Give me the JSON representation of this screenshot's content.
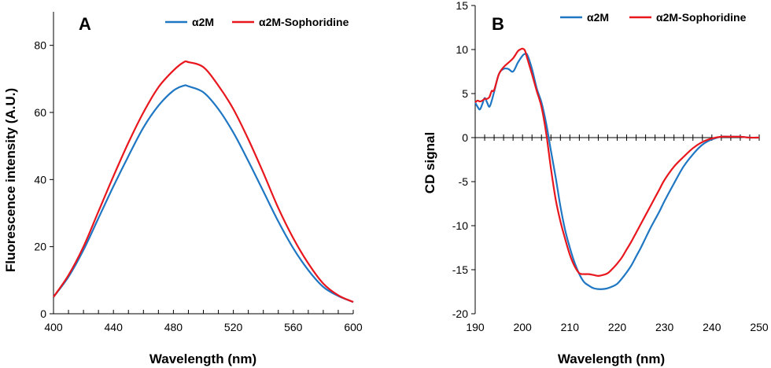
{
  "colors": {
    "series_1": "#1f77c4",
    "series_2": "#e8171d",
    "axis": "#000000"
  },
  "chart_data": [
    {
      "type": "line",
      "panel_label": "A",
      "xlabel": "Wavelength (nm)",
      "ylabel": "Fluorescence intensity (A.U.)",
      "xlim": [
        400,
        600
      ],
      "ylim": [
        0,
        90
      ],
      "x_ticks": [
        400,
        440,
        480,
        520,
        560,
        600
      ],
      "y_ticks": [
        0,
        20,
        40,
        60,
        80
      ],
      "x_minor_step": 10,
      "legend": [
        "α2M",
        "α2M-Sophoridine"
      ],
      "series": [
        {
          "name": "α2M",
          "x": [
            400,
            410,
            420,
            430,
            440,
            450,
            460,
            470,
            480,
            487,
            490,
            500,
            510,
            520,
            530,
            540,
            550,
            560,
            570,
            580,
            590,
            600
          ],
          "y": [
            5,
            11,
            19,
            28.5,
            38,
            47,
            55.5,
            62,
            66.5,
            68,
            67.8,
            66,
            61,
            54,
            45.5,
            36.5,
            27.5,
            19.5,
            13,
            8,
            5.3,
            3.5
          ]
        },
        {
          "name": "α2M-Sophoridine",
          "x": [
            400,
            410,
            420,
            430,
            440,
            450,
            460,
            470,
            480,
            487,
            490,
            500,
            510,
            520,
            530,
            540,
            550,
            560,
            570,
            580,
            590,
            600
          ],
          "y": [
            5,
            11.5,
            20,
            30.5,
            41,
            51,
            60,
            67.5,
            72.5,
            75,
            75,
            73.5,
            68,
            61,
            52,
            42,
            31.5,
            22.5,
            15,
            9,
            5.5,
            3.5
          ]
        }
      ]
    },
    {
      "type": "line",
      "panel_label": "B",
      "xlabel": "Wavelength (nm)",
      "ylabel": "CD signal",
      "xlim": [
        190,
        250
      ],
      "ylim": [
        -20,
        15
      ],
      "x_ticks": [
        190,
        200,
        210,
        220,
        230,
        240,
        250
      ],
      "y_ticks": [
        15,
        10,
        5,
        0,
        -5,
        -10,
        -15,
        -20
      ],
      "x_minor_step": 2,
      "legend": [
        "α2M",
        "α2M-Sophoridine"
      ],
      "series": [
        {
          "name": "α2M",
          "x": [
            190,
            190.5,
            191,
            191.5,
            192,
            192.5,
            193,
            193.5,
            194,
            195,
            196,
            197,
            198,
            199,
            200,
            200.5,
            201,
            202,
            203,
            204,
            205,
            206,
            207,
            208,
            209,
            210,
            211,
            212,
            213,
            214,
            215,
            216,
            217,
            218,
            219,
            220,
            221,
            222,
            223,
            224,
            225,
            226,
            227,
            228,
            229,
            230,
            232,
            234,
            236,
            238,
            240,
            242,
            244,
            246,
            248,
            250
          ],
          "y": [
            4,
            3.5,
            3.2,
            3.8,
            4.5,
            4,
            3.5,
            4.2,
            5.2,
            7.2,
            7.8,
            7.8,
            7.5,
            8.5,
            9.3,
            9.5,
            9.4,
            7.8,
            5.6,
            4,
            1.6,
            -1.5,
            -4.5,
            -7.8,
            -10.5,
            -12.5,
            -14.2,
            -15.5,
            -16.4,
            -16.8,
            -17.1,
            -17.2,
            -17.2,
            -17.1,
            -16.9,
            -16.6,
            -16,
            -15.3,
            -14.5,
            -13.5,
            -12.5,
            -11.4,
            -10.3,
            -9.3,
            -8.3,
            -7.2,
            -5.2,
            -3.3,
            -1.9,
            -0.8,
            -0.2,
            0.1,
            0.1,
            0.1,
            0,
            0
          ]
        },
        {
          "name": "α2M-Sophoridine",
          "x": [
            190,
            190.5,
            191,
            191.5,
            192,
            192.5,
            193,
            193.5,
            194,
            195,
            196,
            197,
            198,
            199,
            199.5,
            200,
            200.5,
            201,
            202,
            203,
            204,
            205,
            206,
            207,
            208,
            209,
            210,
            211,
            212,
            213,
            214,
            215,
            216,
            217,
            218,
            219,
            220,
            221,
            222,
            223,
            224,
            225,
            226,
            227,
            228,
            229,
            230,
            232,
            234,
            236,
            238,
            240,
            242,
            244,
            246,
            248,
            250
          ],
          "y": [
            4,
            4.2,
            4.1,
            4.2,
            4.4,
            4.4,
            4.6,
            5.3,
            5.4,
            7.2,
            8,
            8.5,
            9,
            9.8,
            10,
            10.1,
            9.9,
            9,
            7.2,
            5.3,
            3.5,
            0.5,
            -3.5,
            -7,
            -9.5,
            -11.5,
            -13.3,
            -14.6,
            -15.4,
            -15.5,
            -15.5,
            -15.6,
            -15.7,
            -15.6,
            -15.4,
            -14.9,
            -14.3,
            -13.6,
            -12.7,
            -11.8,
            -10.8,
            -9.8,
            -8.8,
            -7.8,
            -6.8,
            -5.8,
            -4.8,
            -3.3,
            -2.2,
            -1.2,
            -0.5,
            -0.1,
            0.1,
            0.1,
            0.1,
            0,
            0
          ]
        }
      ]
    }
  ]
}
